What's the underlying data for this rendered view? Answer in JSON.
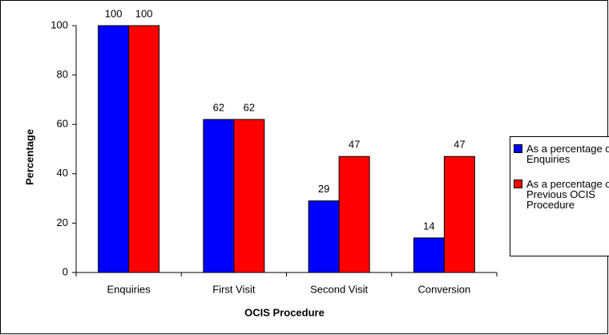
{
  "chart_data": {
    "type": "bar",
    "x_label": "OCIS Procedure",
    "y_label": "Percentage",
    "categories": [
      "Enquiries",
      "First Visit",
      "Second Visit",
      "Conversion"
    ],
    "series": [
      {
        "name": "As a percentage of Enquiries",
        "color": "#0000ff",
        "values": [
          100,
          62,
          29,
          14
        ]
      },
      {
        "name": "As a percentage of Previous OCIS Procedure",
        "color": "#ff0000",
        "values": [
          100,
          62,
          47,
          47
        ]
      }
    ],
    "ylim": [
      0,
      100
    ],
    "yticks": [
      0,
      20,
      40,
      60,
      80,
      100
    ],
    "grid": false,
    "legend": "right"
  }
}
